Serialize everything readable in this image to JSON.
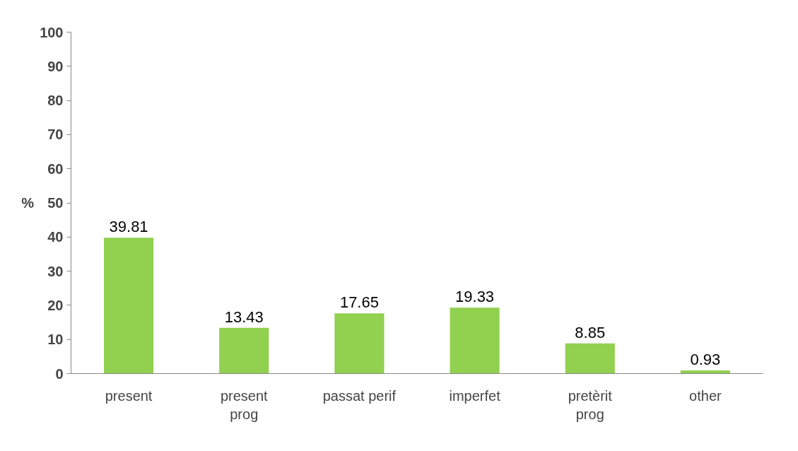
{
  "chart_data": {
    "type": "bar",
    "ylabel": "%",
    "categories": [
      "present",
      "present\nprog",
      "passat perif",
      "imperfet",
      "pretèrit\nprog",
      "other"
    ],
    "values": [
      39.81,
      13.43,
      17.65,
      19.33,
      8.85,
      0.93
    ],
    "color": "#92d050",
    "ylim": [
      0,
      100
    ],
    "yticks": [
      0,
      10,
      20,
      30,
      40,
      50,
      60,
      70,
      80,
      90,
      100
    ],
    "grid": false,
    "data_labels": true
  }
}
